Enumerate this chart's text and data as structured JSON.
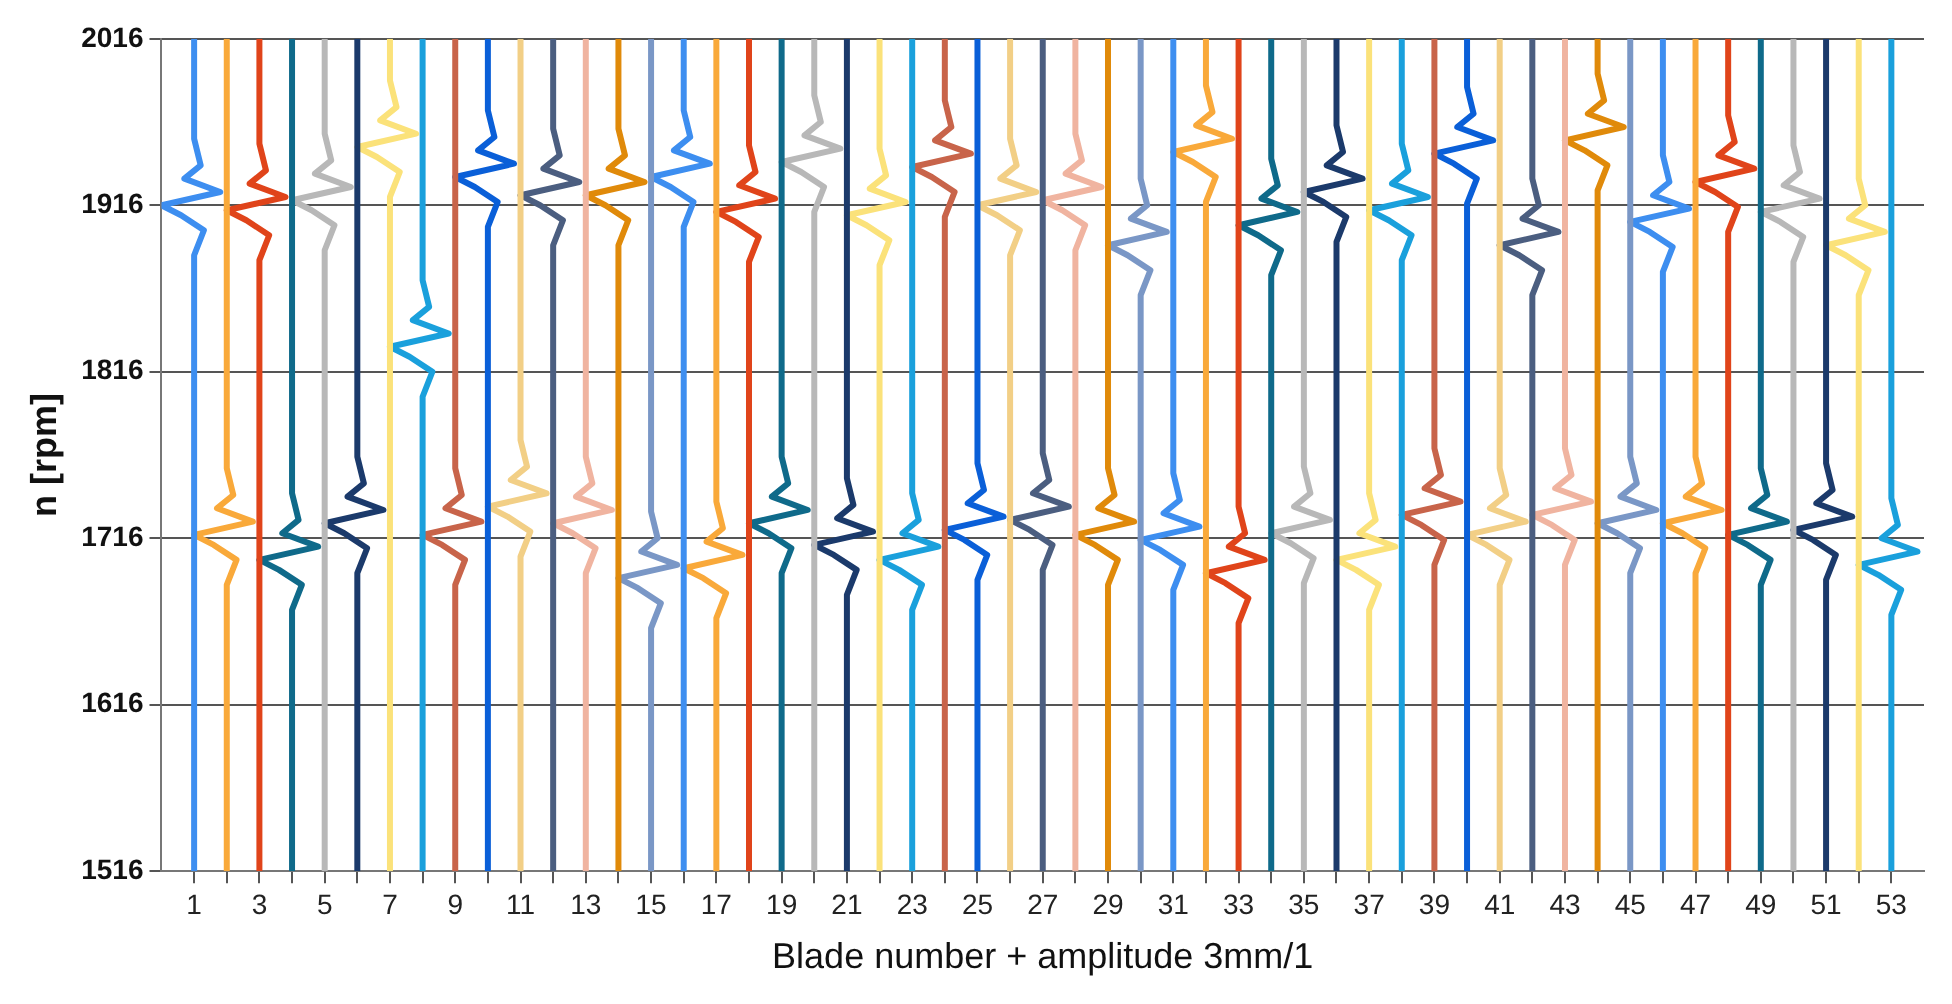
{
  "chart_data": {
    "type": "line",
    "xlabel": "Blade number + amplitude 3mm/1",
    "ylabel": "n [rpm]",
    "xlim": [
      0,
      54
    ],
    "xticks": [
      1,
      {
        "value": 2,
        "label": null
      },
      3,
      {
        "value": 4,
        "label": null
      },
      5,
      {
        "value": 6,
        "label": null
      },
      7,
      {
        "value": 8,
        "label": null
      },
      9,
      {
        "value": 10,
        "label": null
      },
      11,
      {
        "value": 12,
        "label": null
      },
      13,
      {
        "value": 14,
        "label": null
      },
      15,
      {
        "value": 16,
        "label": null
      },
      17,
      {
        "value": 18,
        "label": null
      },
      19,
      {
        "value": 20,
        "label": null
      },
      21,
      {
        "value": 22,
        "label": null
      },
      23,
      {
        "value": 24,
        "label": null
      },
      25,
      {
        "value": 26,
        "label": null
      },
      27,
      {
        "value": 28,
        "label": null
      },
      29,
      {
        "value": 30,
        "label": null
      },
      31,
      {
        "value": 32,
        "label": null
      },
      33,
      {
        "value": 34,
        "label": null
      },
      35,
      {
        "value": 36,
        "label": null
      },
      37,
      {
        "value": 38,
        "label": null
      },
      39,
      {
        "value": 40,
        "label": null
      },
      41,
      {
        "value": 42,
        "label": null
      },
      43,
      {
        "value": 44,
        "label": null
      },
      45,
      {
        "value": 46,
        "label": null
      },
      47,
      {
        "value": 48,
        "label": null
      },
      49,
      {
        "value": 50,
        "label": null
      },
      51,
      {
        "value": 52,
        "label": null
      },
      53
    ],
    "ylim": [
      1516,
      2016
    ],
    "yticks": [
      1516,
      1616,
      1716,
      1816,
      1916,
      2016
    ],
    "grid": "y",
    "marker": "none",
    "line_style": "solid",
    "series": [
      {
        "color": "#3d8ef0",
        "x": [
          1,
          1,
          1.3,
          0.6,
          0,
          1.8,
          0.7,
          1.2,
          1,
          1
        ],
        "values": [
          1516,
          1886,
          1901,
          1910,
          1916,
          1924,
          1932,
          1940,
          1956,
          2016
        ]
      },
      {
        "color": "#f9a93a",
        "x": [
          2,
          2,
          2.3,
          1.6,
          1,
          2.8,
          1.7,
          2.2,
          2,
          2
        ],
        "values": [
          1516,
          1688,
          1703,
          1712,
          1718,
          1726,
          1734,
          1742,
          1758,
          2016
        ]
      },
      {
        "color": "#e0441a",
        "x": [
          3,
          3,
          3.3,
          2.6,
          2,
          3.8,
          2.7,
          3.2,
          3,
          3
        ],
        "values": [
          1516,
          1883,
          1898,
          1907,
          1913,
          1921,
          1929,
          1937,
          1953,
          2016
        ]
      },
      {
        "color": "#0f6a8a",
        "x": [
          4,
          4,
          4.3,
          3.6,
          3,
          4.8,
          3.7,
          4.2,
          4,
          4
        ],
        "values": [
          1516,
          1673,
          1688,
          1697,
          1703,
          1711,
          1719,
          1727,
          1743,
          2016
        ]
      },
      {
        "color": "#b8b8b8",
        "x": [
          5,
          5,
          5.3,
          4.6,
          4,
          5.8,
          4.7,
          5.2,
          5,
          5
        ],
        "values": [
          1516,
          1889,
          1904,
          1913,
          1919,
          1927,
          1935,
          1943,
          1959,
          2016
        ]
      },
      {
        "color": "#1b3a6b",
        "x": [
          6,
          6,
          6.3,
          5.6,
          5,
          6.8,
          5.7,
          6.2,
          6,
          6
        ],
        "values": [
          1516,
          1695,
          1710,
          1719,
          1725,
          1733,
          1741,
          1749,
          1765,
          2016
        ]
      },
      {
        "color": "#fbe27a",
        "x": [
          7,
          7,
          7.3,
          6.6,
          6,
          7.8,
          6.7,
          7.2,
          7,
          7
        ],
        "values": [
          1516,
          1921,
          1936,
          1945,
          1951,
          1959,
          1967,
          1975,
          1991,
          2016
        ]
      },
      {
        "color": "#1aa0dc",
        "x": [
          8,
          8,
          8.3,
          7.6,
          7,
          8.8,
          7.7,
          8.2,
          8,
          8
        ],
        "values": [
          1516,
          1801,
          1816,
          1825,
          1831,
          1839,
          1847,
          1855,
          1871,
          2016
        ]
      },
      {
        "color": "#c8644a",
        "x": [
          9,
          9,
          9.3,
          8.6,
          8,
          9.8,
          8.7,
          9.2,
          9,
          9
        ],
        "values": [
          1516,
          1688,
          1703,
          1712,
          1718,
          1726,
          1734,
          1742,
          1758,
          2016
        ]
      },
      {
        "color": "#0a5fd8",
        "x": [
          10,
          10,
          10.3,
          9.6,
          9,
          10.8,
          9.7,
          10.2,
          10,
          10
        ],
        "values": [
          1516,
          1903,
          1918,
          1927,
          1933,
          1941,
          1949,
          1957,
          1973,
          2016
        ]
      },
      {
        "color": "#f2cf86",
        "x": [
          11,
          11,
          11.3,
          10.6,
          10,
          11.8,
          10.7,
          11.2,
          11,
          11
        ],
        "values": [
          1516,
          1705,
          1720,
          1729,
          1735,
          1743,
          1751,
          1759,
          1775,
          2016
        ]
      },
      {
        "color": "#4b5e80",
        "x": [
          12,
          12,
          12.3,
          11.6,
          11,
          12.8,
          11.7,
          12.2,
          12,
          12
        ],
        "values": [
          1516,
          1892,
          1907,
          1916,
          1922,
          1930,
          1938,
          1946,
          1962,
          2016
        ]
      },
      {
        "color": "#f0b4a0",
        "x": [
          13,
          13,
          13.3,
          12.6,
          12,
          13.8,
          12.7,
          13.2,
          13,
          13
        ],
        "values": [
          1516,
          1695,
          1710,
          1719,
          1725,
          1733,
          1741,
          1749,
          1765,
          2016
        ]
      },
      {
        "color": "#e08a0a",
        "x": [
          14,
          14,
          14.3,
          13.6,
          13,
          14.8,
          13.7,
          14.2,
          14,
          14
        ],
        "values": [
          1516,
          1892,
          1907,
          1916,
          1922,
          1930,
          1938,
          1946,
          1962,
          2016
        ]
      },
      {
        "color": "#7a97c6",
        "x": [
          15,
          15,
          15.3,
          14.6,
          14,
          15.8,
          14.7,
          15.2,
          15,
          15
        ],
        "values": [
          1516,
          1662,
          1677,
          1686,
          1692,
          1700,
          1708,
          1716,
          1732,
          2016
        ]
      },
      {
        "color": "#3d8ef0",
        "x": [
          16,
          16,
          16.3,
          15.6,
          15,
          16.8,
          15.7,
          16.2,
          16,
          16
        ],
        "values": [
          1516,
          1903,
          1918,
          1927,
          1933,
          1941,
          1949,
          1957,
          1973,
          2016
        ]
      },
      {
        "color": "#f9a93a",
        "x": [
          17,
          17,
          17.3,
          16.6,
          16,
          17.8,
          16.7,
          17.2,
          17,
          17
        ],
        "values": [
          1516,
          1668,
          1683,
          1692,
          1698,
          1706,
          1714,
          1722,
          1738,
          2016
        ]
      },
      {
        "color": "#e0441a",
        "x": [
          18,
          18,
          18.3,
          17.6,
          17,
          18.8,
          17.7,
          18.2,
          18,
          18
        ],
        "values": [
          1516,
          1882,
          1897,
          1906,
          1912,
          1920,
          1928,
          1936,
          1952,
          2016
        ]
      },
      {
        "color": "#0f6a8a",
        "x": [
          19,
          19,
          19.3,
          18.6,
          18,
          19.8,
          18.7,
          19.2,
          19,
          19
        ],
        "values": [
          1516,
          1695,
          1710,
          1719,
          1725,
          1733,
          1741,
          1749,
          1765,
          2016
        ]
      },
      {
        "color": "#b8b8b8",
        "x": [
          20,
          20,
          20.3,
          19.6,
          19,
          20.8,
          19.7,
          20.2,
          20,
          20
        ],
        "values": [
          1516,
          1912,
          1927,
          1936,
          1942,
          1950,
          1958,
          1966,
          1982,
          2016
        ]
      },
      {
        "color": "#1b3a6b",
        "x": [
          21,
          21,
          21.3,
          20.6,
          20,
          21.8,
          20.7,
          21.2,
          21,
          21
        ],
        "values": [
          1516,
          1682,
          1697,
          1706,
          1712,
          1720,
          1728,
          1736,
          1752,
          2016
        ]
      },
      {
        "color": "#fbe27a",
        "x": [
          22,
          22,
          22.3,
          21.6,
          21,
          22.8,
          21.7,
          22.2,
          22,
          22
        ],
        "values": [
          1516,
          1880,
          1895,
          1904,
          1910,
          1918,
          1926,
          1934,
          1950,
          2016
        ]
      },
      {
        "color": "#1aa0dc",
        "x": [
          23,
          23,
          23.3,
          22.6,
          22,
          23.8,
          22.7,
          23.2,
          23,
          23
        ],
        "values": [
          1516,
          1673,
          1688,
          1697,
          1703,
          1711,
          1719,
          1727,
          1743,
          2016
        ]
      },
      {
        "color": "#c8644a",
        "x": [
          24,
          24,
          24.3,
          23.6,
          23,
          24.8,
          23.7,
          24.2,
          24,
          24
        ],
        "values": [
          1516,
          1909,
          1924,
          1933,
          1939,
          1947,
          1955,
          1963,
          1979,
          2016
        ]
      },
      {
        "color": "#0a5fd8",
        "x": [
          25,
          25,
          25.3,
          24.6,
          24,
          25.8,
          24.7,
          25.2,
          25,
          25
        ],
        "values": [
          1516,
          1691,
          1706,
          1715,
          1721,
          1729,
          1737,
          1745,
          1761,
          2016
        ]
      },
      {
        "color": "#f2cf86",
        "x": [
          26,
          26,
          26.3,
          25.6,
          25,
          26.8,
          25.7,
          26.2,
          26,
          26
        ],
        "values": [
          1516,
          1886,
          1901,
          1910,
          1916,
          1924,
          1932,
          1940,
          1956,
          2016
        ]
      },
      {
        "color": "#4b5e80",
        "x": [
          27,
          27,
          27.3,
          26.6,
          26,
          27.8,
          26.7,
          27.2,
          27,
          27
        ],
        "values": [
          1516,
          1697,
          1712,
          1721,
          1727,
          1735,
          1743,
          1751,
          1767,
          2016
        ]
      },
      {
        "color": "#f0b4a0",
        "x": [
          28,
          28,
          28.3,
          27.6,
          27,
          28.8,
          27.7,
          28.2,
          28,
          28
        ],
        "values": [
          1516,
          1889,
          1904,
          1913,
          1919,
          1927,
          1935,
          1943,
          1959,
          2016
        ]
      },
      {
        "color": "#e08a0a",
        "x": [
          29,
          29,
          29.3,
          28.6,
          28,
          29.8,
          28.7,
          29.2,
          29,
          29
        ],
        "values": [
          1516,
          1688,
          1703,
          1712,
          1718,
          1726,
          1734,
          1742,
          1758,
          2016
        ]
      },
      {
        "color": "#7a97c6",
        "x": [
          30,
          30,
          30.3,
          29.6,
          29,
          30.8,
          29.7,
          30.2,
          30,
          30
        ],
        "values": [
          1516,
          1862,
          1877,
          1886,
          1892,
          1900,
          1908,
          1916,
          1932,
          2016
        ]
      },
      {
        "color": "#3d8ef0",
        "x": [
          31,
          31,
          31.3,
          30.6,
          30,
          31.8,
          30.7,
          31.2,
          31,
          31
        ],
        "values": [
          1516,
          1685,
          1700,
          1709,
          1715,
          1723,
          1731,
          1739,
          1755,
          2016
        ]
      },
      {
        "color": "#f9a93a",
        "x": [
          32,
          32,
          32.3,
          31.6,
          31,
          32.8,
          31.7,
          32.2,
          32,
          32
        ],
        "values": [
          1516,
          1918,
          1933,
          1942,
          1948,
          1956,
          1964,
          1972,
          1988,
          2016
        ]
      },
      {
        "color": "#e0441a",
        "x": [
          33,
          33,
          33.3,
          32.6,
          32,
          33.8,
          32.7,
          33.2,
          33,
          33
        ],
        "values": [
          1516,
          1665,
          1680,
          1689,
          1695,
          1703,
          1711,
          1719,
          1735,
          2016
        ]
      },
      {
        "color": "#0f6a8a",
        "x": [
          34,
          34,
          34.3,
          33.6,
          33,
          34.8,
          33.7,
          34.2,
          34,
          34
        ],
        "values": [
          1516,
          1874,
          1889,
          1898,
          1904,
          1912,
          1920,
          1928,
          1944,
          2016
        ]
      },
      {
        "color": "#b8b8b8",
        "x": [
          35,
          35,
          35.3,
          34.6,
          34,
          35.8,
          34.7,
          35.2,
          35,
          35
        ],
        "values": [
          1516,
          1689,
          1704,
          1713,
          1719,
          1727,
          1735,
          1743,
          1759,
          2016
        ]
      },
      {
        "color": "#1b3a6b",
        "x": [
          36,
          36,
          36.3,
          35.6,
          35,
          36.8,
          35.7,
          36.2,
          36,
          36
        ],
        "values": [
          1516,
          1894,
          1909,
          1918,
          1924,
          1932,
          1940,
          1948,
          1964,
          2016
        ]
      },
      {
        "color": "#fbe27a",
        "x": [
          37,
          37,
          37.3,
          36.6,
          36,
          37.8,
          36.7,
          37.2,
          37,
          37
        ],
        "values": [
          1516,
          1673,
          1688,
          1697,
          1703,
          1711,
          1719,
          1727,
          1743,
          2016
        ]
      },
      {
        "color": "#1aa0dc",
        "x": [
          38,
          38,
          38.3,
          37.6,
          37,
          38.8,
          37.7,
          38.2,
          38,
          38
        ],
        "values": [
          1516,
          1883,
          1898,
          1907,
          1913,
          1921,
          1929,
          1937,
          1953,
          2016
        ]
      },
      {
        "color": "#c8644a",
        "x": [
          39,
          39,
          39.3,
          38.6,
          38,
          39.8,
          38.7,
          39.2,
          39,
          39
        ],
        "values": [
          1516,
          1700,
          1715,
          1724,
          1730,
          1738,
          1746,
          1754,
          1770,
          2016
        ]
      },
      {
        "color": "#0a5fd8",
        "x": [
          40,
          40,
          40.3,
          39.6,
          39,
          40.8,
          39.7,
          40.2,
          40,
          40
        ],
        "values": [
          1516,
          1917,
          1932,
          1941,
          1947,
          1955,
          1963,
          1971,
          1987,
          2016
        ]
      },
      {
        "color": "#f2cf86",
        "x": [
          41,
          41,
          41.3,
          40.6,
          40,
          41.8,
          40.7,
          41.2,
          41,
          41
        ],
        "values": [
          1516,
          1688,
          1703,
          1712,
          1718,
          1726,
          1734,
          1742,
          1758,
          2016
        ]
      },
      {
        "color": "#4b5e80",
        "x": [
          42,
          42,
          42.3,
          41.6,
          41,
          42.8,
          41.7,
          42.2,
          42,
          42
        ],
        "values": [
          1516,
          1862,
          1877,
          1886,
          1892,
          1900,
          1908,
          1916,
          1932,
          2016
        ]
      },
      {
        "color": "#f0b4a0",
        "x": [
          43,
          43,
          43.3,
          42.6,
          42,
          43.8,
          42.7,
          43.2,
          43,
          43
        ],
        "values": [
          1516,
          1700,
          1715,
          1724,
          1730,
          1738,
          1746,
          1754,
          1770,
          2016
        ]
      },
      {
        "color": "#e08a0a",
        "x": [
          44,
          44,
          44.3,
          43.6,
          43,
          44.8,
          43.7,
          44.2,
          44,
          44
        ],
        "values": [
          1516,
          1925,
          1940,
          1949,
          1955,
          1963,
          1971,
          1979,
          1995,
          2016
        ]
      },
      {
        "color": "#7a97c6",
        "x": [
          45,
          45,
          45.3,
          44.6,
          44,
          45.8,
          44.7,
          45.2,
          45,
          45
        ],
        "values": [
          1516,
          1695,
          1710,
          1719,
          1725,
          1733,
          1741,
          1749,
          1765,
          2016
        ]
      },
      {
        "color": "#3d8ef0",
        "x": [
          46,
          46,
          46.3,
          45.6,
          45,
          46.8,
          45.7,
          46.2,
          46,
          46
        ],
        "values": [
          1516,
          1876,
          1891,
          1900,
          1906,
          1914,
          1922,
          1930,
          1946,
          2016
        ]
      },
      {
        "color": "#f9a93a",
        "x": [
          47,
          47,
          47.3,
          46.6,
          46,
          47.8,
          46.7,
          47.2,
          47,
          47
        ],
        "values": [
          1516,
          1695,
          1710,
          1719,
          1725,
          1733,
          1741,
          1749,
          1765,
          2016
        ]
      },
      {
        "color": "#e0441a",
        "x": [
          48,
          48,
          48.3,
          47.6,
          47,
          48.8,
          47.7,
          48.2,
          48,
          48
        ],
        "values": [
          1516,
          1900,
          1915,
          1924,
          1930,
          1938,
          1946,
          1954,
          1970,
          2016
        ]
      },
      {
        "color": "#0f6a8a",
        "x": [
          49,
          49,
          49.3,
          48.6,
          48,
          49.8,
          48.7,
          49.2,
          49,
          49
        ],
        "values": [
          1516,
          1688,
          1703,
          1712,
          1718,
          1726,
          1734,
          1742,
          1758,
          2016
        ]
      },
      {
        "color": "#b8b8b8",
        "x": [
          50,
          50,
          50.3,
          49.6,
          49,
          50.8,
          49.7,
          50.2,
          50,
          50
        ],
        "values": [
          1516,
          1882,
          1897,
          1906,
          1912,
          1920,
          1928,
          1936,
          1952,
          2016
        ]
      },
      {
        "color": "#1b3a6b",
        "x": [
          51,
          51,
          51.3,
          50.6,
          50,
          51.8,
          50.7,
          51.2,
          51,
          51
        ],
        "values": [
          1516,
          1691,
          1706,
          1715,
          1721,
          1729,
          1737,
          1745,
          1761,
          2016
        ]
      },
      {
        "color": "#fbe27a",
        "x": [
          52,
          52,
          52.3,
          51.6,
          51,
          52.8,
          51.7,
          52.2,
          52,
          52
        ],
        "values": [
          1516,
          1862,
          1877,
          1886,
          1892,
          1900,
          1908,
          1916,
          1932,
          2016
        ]
      },
      {
        "color": "#1aa0dc",
        "x": [
          53,
          53,
          53.3,
          52.6,
          52,
          53.8,
          52.7,
          53.2,
          53,
          53
        ],
        "values": [
          1516,
          1670,
          1685,
          1694,
          1700,
          1708,
          1716,
          1724,
          1740,
          2016
        ]
      }
    ]
  }
}
